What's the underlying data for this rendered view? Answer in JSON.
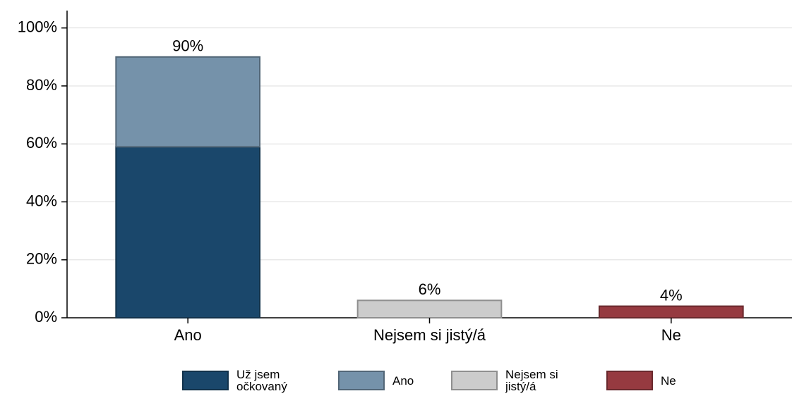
{
  "chart_data": {
    "type": "stacked_bar",
    "categories": [
      "Ano",
      "Nejsem si jistý/á",
      "Ne"
    ],
    "series": [
      {
        "name": "Už jsem očkovaný",
        "color": "#1a476b",
        "values": [
          59,
          null,
          null
        ]
      },
      {
        "name": "Ano",
        "color": "#7592aa",
        "values": [
          31,
          null,
          null
        ]
      },
      {
        "name": "Nejsem si jistý/á",
        "color": "#cccccc",
        "values": [
          null,
          6,
          null
        ]
      },
      {
        "name": "Ne",
        "color": "#963a40",
        "values": [
          null,
          null,
          4
        ]
      }
    ],
    "totals": [
      90,
      6,
      4
    ],
    "total_labels": [
      "90%",
      "6%",
      "4%"
    ],
    "ylim": [
      0,
      106
    ],
    "yticks": [
      {
        "value": 0,
        "label": "0%"
      },
      {
        "value": 20,
        "label": "20%"
      },
      {
        "value": 40,
        "label": "40%"
      },
      {
        "value": 60,
        "label": "60%"
      },
      {
        "value": 80,
        "label": "80%"
      },
      {
        "value": 100,
        "label": "100%"
      }
    ],
    "grid": true,
    "legend": "bottom"
  }
}
